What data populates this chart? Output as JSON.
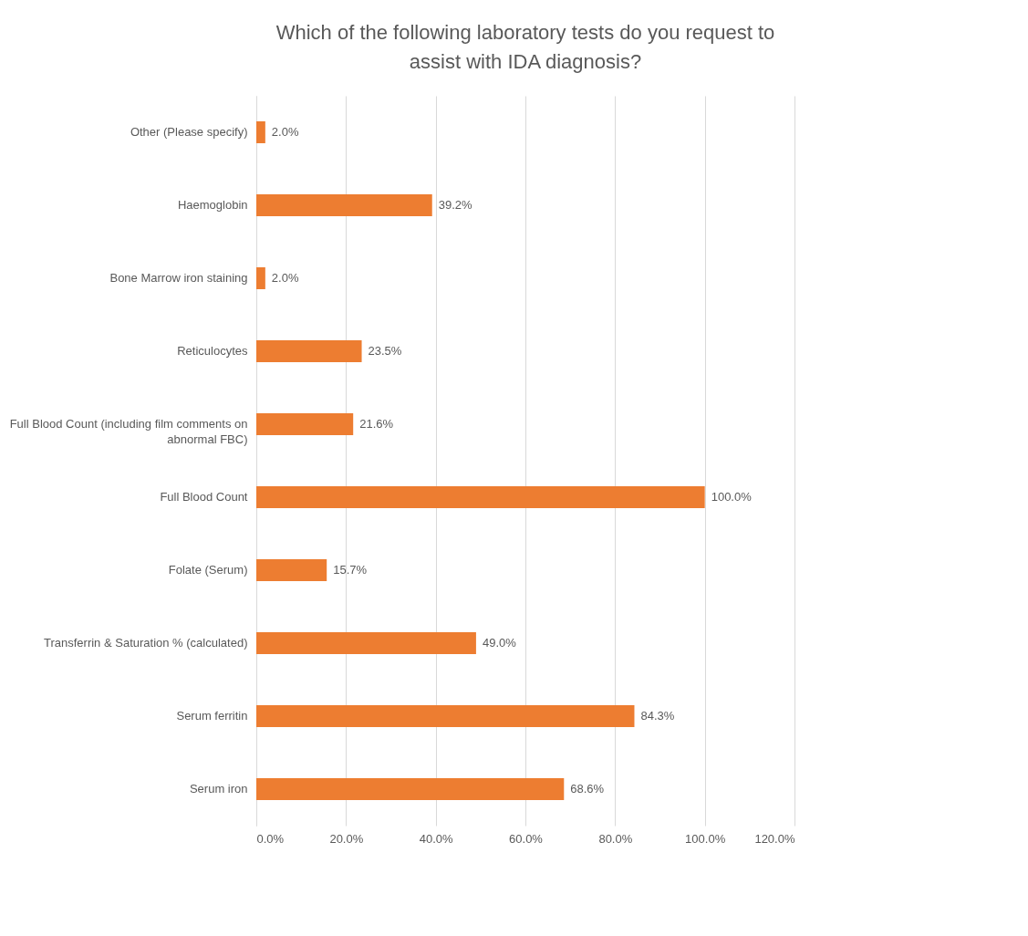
{
  "chart_data": {
    "type": "bar",
    "orientation": "horizontal",
    "title": "Which of the following laboratory tests do you request to assist with IDA diagnosis?",
    "categories": [
      "Other (Please specify)",
      "Haemoglobin",
      "Bone Marrow iron staining",
      "Reticulocytes",
      "Full Blood Count (including film comments on abnormal FBC)",
      "Full Blood Count",
      "Folate (Serum)",
      "Transferrin & Saturation % (calculated)",
      "Serum ferritin",
      "Serum iron"
    ],
    "values": [
      2.0,
      39.2,
      2.0,
      23.5,
      21.6,
      100.0,
      15.7,
      49.0,
      84.3,
      68.6
    ],
    "value_labels": [
      "2.0%",
      "39.2%",
      "2.0%",
      "23.5%",
      "21.6%",
      "100.0%",
      "15.7%",
      "49.0%",
      "84.3%",
      "68.6%"
    ],
    "color": "#ed7d31",
    "xlim": [
      0,
      120
    ],
    "xticks": [
      {
        "value": 0,
        "label": "0.0%"
      },
      {
        "value": 20,
        "label": "20.0%"
      },
      {
        "value": 40,
        "label": "40.0%"
      },
      {
        "value": 60,
        "label": "60.0%"
      },
      {
        "value": 80,
        "label": "80.0%"
      },
      {
        "value": 100,
        "label": "100.0%"
      },
      {
        "value": 120,
        "label": "120.0%"
      }
    ],
    "grid": "x"
  }
}
